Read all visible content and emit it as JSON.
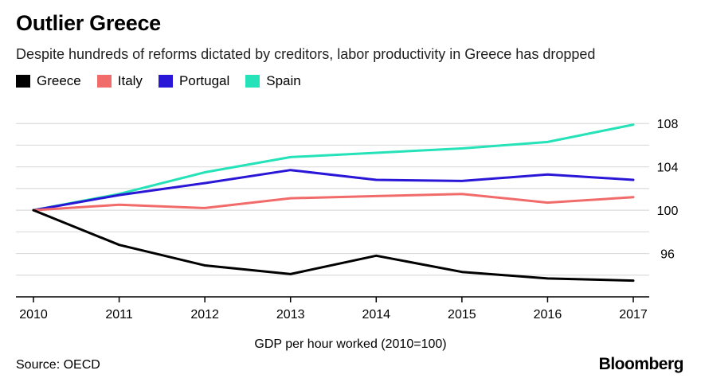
{
  "header": {
    "title": "Outlier Greece",
    "subtitle": "Despite hundreds of reforms dictated by creditors, labor productivity in Greece has dropped"
  },
  "footer": {
    "source": "Source: OECD",
    "brand": "Bloomberg"
  },
  "chart_data": {
    "type": "line",
    "title": "Outlier Greece",
    "subtitle": "Despite hundreds of reforms dictated by creditors, labor productivity in Greece has dropped",
    "xlabel": "GDP per hour worked (2010=100)",
    "ylabel": "",
    "x": [
      "2010",
      "2011",
      "2012",
      "2013",
      "2014",
      "2015",
      "2016",
      "2017"
    ],
    "ylim": [
      92,
      110
    ],
    "yticks": [
      96,
      100,
      104,
      108
    ],
    "grid": true,
    "y_axis_side": "right",
    "legend_placement": "top-left",
    "series": [
      {
        "name": "Greece",
        "color": "#000000",
        "values": [
          100,
          96.8,
          94.9,
          94.1,
          95.8,
          94.3,
          93.7,
          93.5
        ]
      },
      {
        "name": "Italy",
        "color": "#f26b6b",
        "values": [
          100,
          100.5,
          100.2,
          101.1,
          101.3,
          101.5,
          100.7,
          101.2
        ]
      },
      {
        "name": "Portugal",
        "color": "#2a16d6",
        "values": [
          100,
          101.4,
          102.5,
          103.7,
          102.8,
          102.7,
          103.3,
          102.8
        ]
      },
      {
        "name": "Spain",
        "color": "#26e2b8",
        "values": [
          100,
          101.5,
          103.5,
          104.9,
          105.3,
          105.7,
          106.3,
          107.9
        ]
      }
    ]
  }
}
